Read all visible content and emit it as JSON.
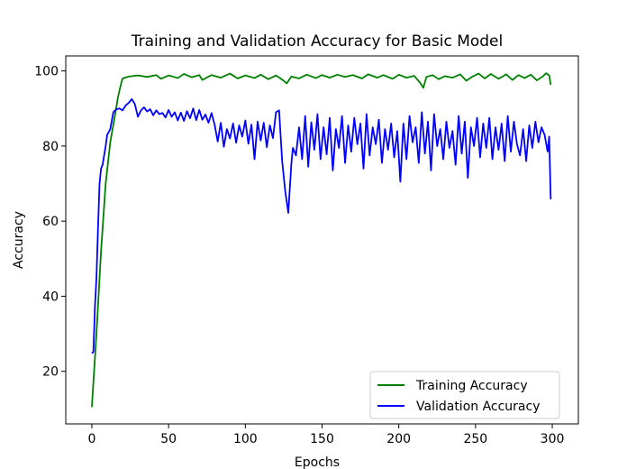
{
  "chart_data": {
    "type": "line",
    "title": "Training and Validation Accuracy for Basic Model",
    "xlabel": "Epochs",
    "ylabel": "Accuracy",
    "xlim": [
      -17,
      317
    ],
    "ylim": [
      6,
      104
    ],
    "xticks": [
      0,
      50,
      100,
      150,
      200,
      250,
      300
    ],
    "yticks": [
      20,
      40,
      60,
      80,
      100
    ],
    "grid": false,
    "legend_position": "lower-right",
    "series": [
      {
        "name": "Training Accuracy",
        "color": "#008000",
        "points": [
          [
            0,
            10.5
          ],
          [
            3,
            30
          ],
          [
            6,
            52
          ],
          [
            9,
            70
          ],
          [
            12,
            81
          ],
          [
            15,
            88
          ],
          [
            17,
            93
          ],
          [
            19,
            96.5
          ],
          [
            20,
            98
          ],
          [
            24,
            98.5
          ],
          [
            30,
            98.8
          ],
          [
            36,
            98.4
          ],
          [
            42,
            98.9
          ],
          [
            45,
            97.9
          ],
          [
            50,
            98.8
          ],
          [
            56,
            98.1
          ],
          [
            60,
            99.2
          ],
          [
            65,
            98.3
          ],
          [
            70,
            98.9
          ],
          [
            72,
            97.6
          ],
          [
            78,
            98.9
          ],
          [
            84,
            98.2
          ],
          [
            90,
            99.3
          ],
          [
            95,
            98.0
          ],
          [
            100,
            98.8
          ],
          [
            106,
            98.1
          ],
          [
            110,
            99.0
          ],
          [
            115,
            97.8
          ],
          [
            120,
            98.8
          ],
          [
            125,
            97.4
          ],
          [
            127,
            96.7
          ],
          [
            130,
            98.5
          ],
          [
            135,
            98.0
          ],
          [
            140,
            99.0
          ],
          [
            146,
            98.1
          ],
          [
            150,
            98.9
          ],
          [
            155,
            98.2
          ],
          [
            160,
            99.0
          ],
          [
            165,
            98.4
          ],
          [
            170,
            98.9
          ],
          [
            176,
            98.0
          ],
          [
            180,
            99.1
          ],
          [
            186,
            98.2
          ],
          [
            190,
            98.9
          ],
          [
            196,
            97.9
          ],
          [
            200,
            99.0
          ],
          [
            205,
            98.2
          ],
          [
            210,
            98.7
          ],
          [
            214,
            96.8
          ],
          [
            216,
            95.5
          ],
          [
            218,
            98.4
          ],
          [
            222,
            98.9
          ],
          [
            226,
            97.8
          ],
          [
            230,
            98.6
          ],
          [
            235,
            98.2
          ],
          [
            240,
            99.1
          ],
          [
            244,
            97.4
          ],
          [
            248,
            98.5
          ],
          [
            252,
            99.3
          ],
          [
            256,
            98.0
          ],
          [
            260,
            99.2
          ],
          [
            265,
            97.9
          ],
          [
            270,
            99.1
          ],
          [
            274,
            97.6
          ],
          [
            278,
            98.9
          ],
          [
            282,
            98.1
          ],
          [
            286,
            99.0
          ],
          [
            290,
            97.5
          ],
          [
            294,
            98.6
          ],
          [
            296,
            99.4
          ],
          [
            298,
            98.8
          ],
          [
            299,
            96.3
          ]
        ]
      },
      {
        "name": "Validation Accuracy",
        "color": "#0000ff",
        "points": [
          [
            0,
            24.8
          ],
          [
            1,
            25.2
          ],
          [
            2,
            37
          ],
          [
            3,
            45
          ],
          [
            4,
            58
          ],
          [
            5,
            70
          ],
          [
            6,
            74
          ],
          [
            7,
            75
          ],
          [
            9,
            80
          ],
          [
            10,
            83
          ],
          [
            12,
            84.5
          ],
          [
            14,
            89
          ],
          [
            16,
            89.8
          ],
          [
            18,
            90
          ],
          [
            20,
            89.5
          ],
          [
            22,
            90.8
          ],
          [
            24,
            91.5
          ],
          [
            26,
            92.5
          ],
          [
            28,
            91.2
          ],
          [
            30,
            87.8
          ],
          [
            32,
            89.5
          ],
          [
            34,
            90.3
          ],
          [
            36,
            89.2
          ],
          [
            38,
            89.8
          ],
          [
            40,
            88.2
          ],
          [
            42,
            89.5
          ],
          [
            44,
            88.5
          ],
          [
            46,
            88.8
          ],
          [
            48,
            87.6
          ],
          [
            50,
            89.6
          ],
          [
            52,
            87.8
          ],
          [
            54,
            89.0
          ],
          [
            56,
            86.8
          ],
          [
            58,
            88.9
          ],
          [
            60,
            86.7
          ],
          [
            62,
            89.3
          ],
          [
            64,
            87.4
          ],
          [
            66,
            90.0
          ],
          [
            68,
            86.9
          ],
          [
            70,
            89.6
          ],
          [
            72,
            87.0
          ],
          [
            74,
            88.4
          ],
          [
            76,
            86.2
          ],
          [
            78,
            88.8
          ],
          [
            80,
            85.7
          ],
          [
            82,
            81.2
          ],
          [
            84,
            86.2
          ],
          [
            86,
            79.8
          ],
          [
            88,
            84.5
          ],
          [
            90,
            82.0
          ],
          [
            92,
            86.0
          ],
          [
            94,
            80.9
          ],
          [
            96,
            85.5
          ],
          [
            98,
            82.5
          ],
          [
            100,
            86.8
          ],
          [
            102,
            80.6
          ],
          [
            104,
            85.7
          ],
          [
            106,
            76.5
          ],
          [
            108,
            86.5
          ],
          [
            110,
            81.5
          ],
          [
            112,
            86.2
          ],
          [
            114,
            79.7
          ],
          [
            116,
            85.5
          ],
          [
            118,
            82.1
          ],
          [
            120,
            89.0
          ],
          [
            122,
            89.5
          ],
          [
            124,
            76.0
          ],
          [
            126,
            68.0
          ],
          [
            128,
            62.2
          ],
          [
            130,
            75.3
          ],
          [
            131,
            79.5
          ],
          [
            133,
            77.5
          ],
          [
            135,
            85.0
          ],
          [
            137,
            76.5
          ],
          [
            139,
            88.0
          ],
          [
            141,
            74.5
          ],
          [
            143,
            86.3
          ],
          [
            145,
            79.0
          ],
          [
            147,
            88.5
          ],
          [
            149,
            76.5
          ],
          [
            151,
            85.0
          ],
          [
            153,
            77.8
          ],
          [
            155,
            87.5
          ],
          [
            157,
            73.5
          ],
          [
            159,
            84.5
          ],
          [
            161,
            79.5
          ],
          [
            163,
            88.0
          ],
          [
            165,
            75.5
          ],
          [
            167,
            85.5
          ],
          [
            169,
            78.5
          ],
          [
            171,
            87.5
          ],
          [
            173,
            80.5
          ],
          [
            175,
            86.0
          ],
          [
            177,
            74.0
          ],
          [
            179,
            88.5
          ],
          [
            181,
            77.5
          ],
          [
            183,
            85.0
          ],
          [
            185,
            80.5
          ],
          [
            187,
            87.0
          ],
          [
            189,
            75.5
          ],
          [
            191,
            84.5
          ],
          [
            193,
            79.0
          ],
          [
            195,
            86.0
          ],
          [
            197,
            77.0
          ],
          [
            199,
            84.0
          ],
          [
            201,
            70.5
          ],
          [
            203,
            86.0
          ],
          [
            205,
            76.5
          ],
          [
            207,
            88.0
          ],
          [
            209,
            81.0
          ],
          [
            211,
            85.0
          ],
          [
            213,
            75.5
          ],
          [
            215,
            89.0
          ],
          [
            217,
            78.0
          ],
          [
            219,
            86.5
          ],
          [
            221,
            73.5
          ],
          [
            223,
            88.5
          ],
          [
            225,
            80.0
          ],
          [
            227,
            84.5
          ],
          [
            229,
            76.5
          ],
          [
            231,
            86.5
          ],
          [
            233,
            79.5
          ],
          [
            235,
            84.0
          ],
          [
            237,
            75.0
          ],
          [
            239,
            88.0
          ],
          [
            241,
            78.0
          ],
          [
            243,
            86.5
          ],
          [
            245,
            71.5
          ],
          [
            247,
            85.0
          ],
          [
            249,
            80.0
          ],
          [
            251,
            87.5
          ],
          [
            253,
            77.0
          ],
          [
            255,
            86.0
          ],
          [
            257,
            79.5
          ],
          [
            259,
            87.5
          ],
          [
            261,
            76.5
          ],
          [
            263,
            85.0
          ],
          [
            265,
            79.0
          ],
          [
            267,
            86.0
          ],
          [
            269,
            76.0
          ],
          [
            271,
            88.0
          ],
          [
            273,
            78.5
          ],
          [
            275,
            86.5
          ],
          [
            277,
            80.5
          ],
          [
            279,
            77.5
          ],
          [
            281,
            84.5
          ],
          [
            283,
            76.0
          ],
          [
            285,
            85.5
          ],
          [
            287,
            79.5
          ],
          [
            289,
            86.5
          ],
          [
            291,
            81.0
          ],
          [
            293,
            85.0
          ],
          [
            295,
            83.0
          ],
          [
            297,
            78.5
          ],
          [
            298,
            82.5
          ],
          [
            299,
            65.8
          ]
        ]
      }
    ]
  }
}
